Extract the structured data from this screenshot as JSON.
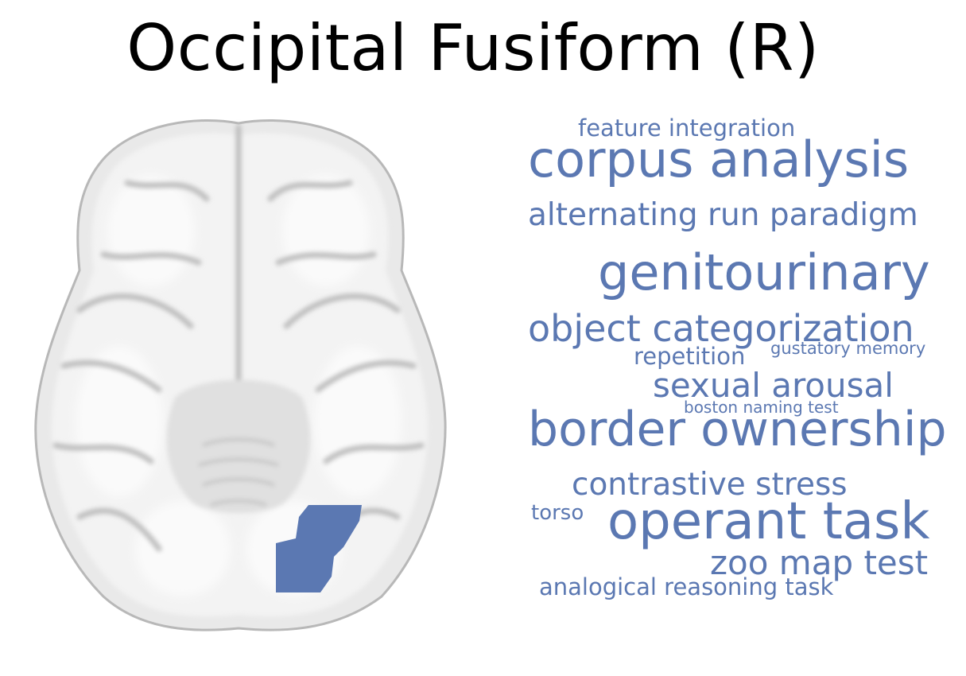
{
  "title": "Occipital Fusiform (R)",
  "colors": {
    "accent": "#5b78b2",
    "background": "#ffffff"
  },
  "brain_image": {
    "view": "axial brain slice",
    "highlighted_region_color": "#5b78b2"
  },
  "word_cloud": [
    "feature integration",
    "corpus analysis",
    "alternating run paradigm",
    "genitourinary",
    "object categorization",
    "repetition",
    "gustatory memory",
    "sexual arousal",
    "boston naming test",
    "border ownership",
    "contrastive stress",
    "torso",
    "operant task",
    "zoo map test",
    "analogical reasoning task"
  ]
}
